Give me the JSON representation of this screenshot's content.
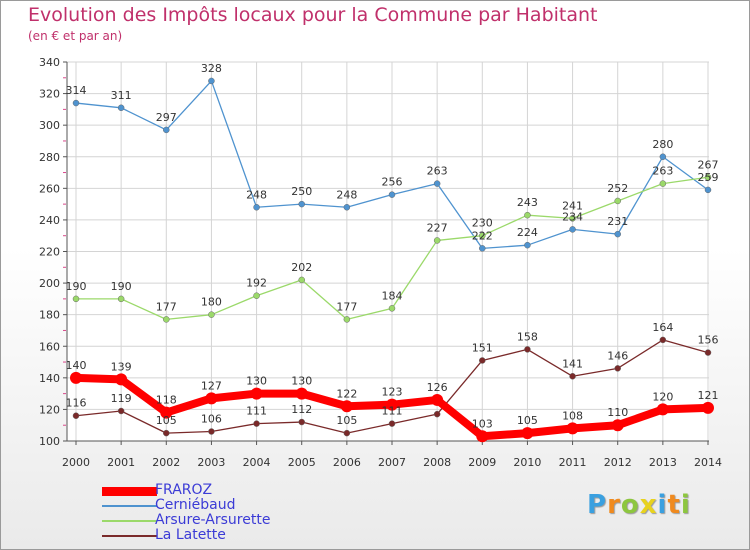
{
  "chart_data": {
    "type": "line",
    "title": "Evolution des Impôts locaux pour la Commune par Habitant",
    "subtitle": "(en € et par an)",
    "xlabel": "",
    "ylabel": "",
    "categories": [
      "2000",
      "2001",
      "2002",
      "2003",
      "2004",
      "2005",
      "2006",
      "2007",
      "2008",
      "2009",
      "2010",
      "2011",
      "2012",
      "2013",
      "2014"
    ],
    "ylim": [
      100,
      340
    ],
    "yticks": [
      "100",
      "120",
      "140",
      "160",
      "180",
      "200",
      "220",
      "240",
      "260",
      "280",
      "300",
      "320",
      "340"
    ],
    "grid": true,
    "legend_position": "bottom-left",
    "series": [
      {
        "name": "FRAROZ",
        "color": "#ff0000",
        "values": [
          140,
          139,
          118,
          127,
          130,
          130,
          122,
          123,
          126,
          103,
          105,
          108,
          110,
          120,
          121
        ]
      },
      {
        "name": "Cerniébaud",
        "color": "#4f93cf",
        "values": [
          314,
          311,
          297,
          328,
          248,
          250,
          248,
          256,
          263,
          222,
          224,
          234,
          231,
          280,
          259
        ]
      },
      {
        "name": "Arsure-Arsurette",
        "color": "#9bd96a",
        "values": [
          190,
          190,
          177,
          180,
          192,
          202,
          177,
          184,
          227,
          230,
          243,
          241,
          252,
          263,
          267
        ]
      },
      {
        "name": "La Latette",
        "color": "#7a2a2a",
        "values": [
          116,
          119,
          105,
          106,
          111,
          112,
          105,
          111,
          117,
          151,
          158,
          141,
          146,
          164,
          156
        ]
      }
    ],
    "data_labels": [
      [
        "140",
        "139",
        "118",
        "127",
        "130",
        "130",
        "122",
        "123",
        "126",
        "103",
        "105",
        "108",
        "110",
        "120",
        "121"
      ],
      [
        "314",
        "311",
        "297",
        "328",
        "248",
        "250",
        "248",
        "256",
        "263",
        "222",
        "224",
        "234",
        "231",
        "280",
        "259"
      ],
      [
        "190",
        "190",
        "177",
        "180",
        "192",
        "202",
        "177",
        "184",
        "227",
        "230",
        "243",
        "241",
        "252",
        "263",
        "267"
      ],
      [
        "116",
        "119",
        "105",
        "106",
        "111",
        "112",
        "105",
        "111",
        "",
        "151",
        "158",
        "141",
        "146",
        "164",
        "156"
      ]
    ]
  },
  "logo": {
    "letters": [
      "P",
      "r",
      "o",
      "x",
      "i",
      "t",
      "i"
    ],
    "colors": [
      "#3aa0e0",
      "#f08a1e",
      "#8dc63f",
      "#e8d21e",
      "#3aa0e0",
      "#f08a1e",
      "#8dc63f"
    ]
  }
}
